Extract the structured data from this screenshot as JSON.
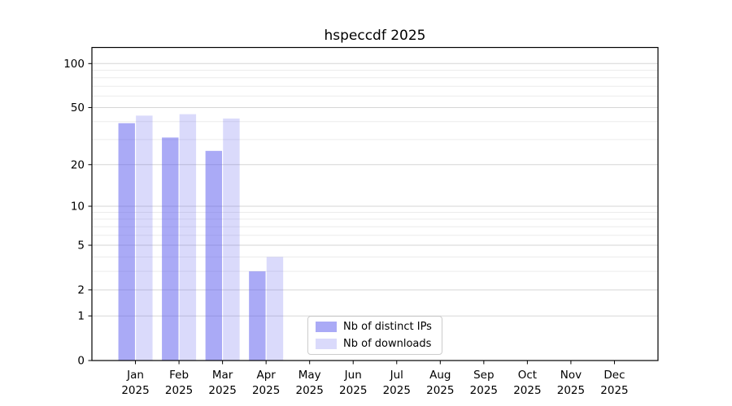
{
  "figure": {
    "kind": "statistics bar chart",
    "background": "#ffffff"
  },
  "chart_data": {
    "type": "bar",
    "title": "hspeccdf 2025",
    "categories": [
      "Jan 2025",
      "Feb 2025",
      "Mar 2025",
      "Apr 2025",
      "May 2025",
      "Jun 2025",
      "Jul 2025",
      "Aug 2025",
      "Sep 2025",
      "Oct 2025",
      "Nov 2025",
      "Dec 2025"
    ],
    "series": [
      {
        "name": "Nb of distinct IPs",
        "color": "rgba(85,85,238,0.5)",
        "values": [
          39,
          31,
          25,
          3,
          0,
          0,
          0,
          0,
          0,
          0,
          0,
          0
        ]
      },
      {
        "name": "Nb of downloads",
        "color": "rgba(85,85,238,0.22)",
        "values": [
          44,
          45,
          42,
          4,
          0,
          0,
          0,
          0,
          0,
          0,
          0,
          0
        ]
      }
    ],
    "xlabel": "",
    "ylabel": "",
    "yscale": "log10(1+y)",
    "yticks": [
      0,
      1,
      2,
      5,
      10,
      20,
      50,
      100
    ],
    "minor_yticks": [
      3,
      4,
      6,
      7,
      8,
      9,
      30,
      40,
      60,
      70,
      80,
      90
    ],
    "ylim_top_value": 129,
    "grid": "horizontal major + minor",
    "legend_position": "inside lower center",
    "bars_per_group": 2,
    "bar_orientation": "vertical"
  },
  "colors": {
    "axis": "#000000",
    "major_grid": "#d6d6d6",
    "minor_grid": "#ececec",
    "tick_label": "#000000",
    "legend_border": "#cccccc"
  }
}
